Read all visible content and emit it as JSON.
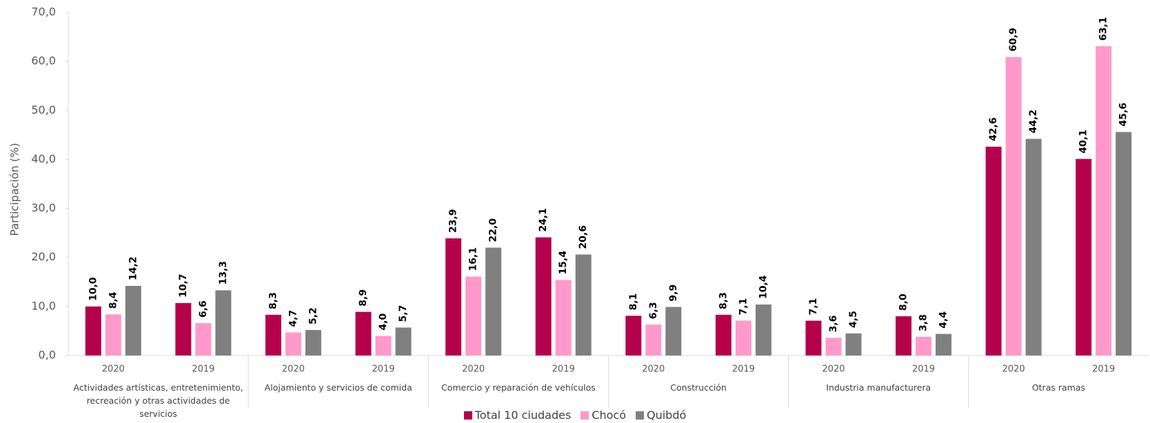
{
  "chart_data": {
    "type": "bar",
    "y_label": "Participación (%)",
    "categories": [
      "2020",
      "2019",
      "2020",
      "2019",
      "2020",
      "2019",
      "2020",
      "2019",
      "2020",
      "2019",
      "2020",
      "2019"
    ],
    "groups": [
      "Actividades artísticas, entretenimiento, recreación y otras actividades de servicios",
      "Alojamiento y servicios de comida",
      "Comercio y reparación de vehículos",
      "Construcción",
      "Industria manufacturera",
      "Otras ramas"
    ],
    "series": [
      {
        "name": "Total 10 ciudades",
        "color": "#b5004b",
        "values": [
          10.0,
          10.7,
          8.3,
          8.9,
          23.9,
          24.1,
          8.1,
          8.3,
          7.1,
          8.0,
          42.6,
          40.1
        ],
        "value_labels": [
          "10,0",
          "10,7",
          "8,3",
          "8,9",
          "23,9",
          "24,1",
          "8,1",
          "8,3",
          "7,1",
          "8,0",
          "42,6",
          "40,1"
        ]
      },
      {
        "name": "Chocó",
        "color": "#ff99cc",
        "values": [
          8.4,
          6.6,
          4.7,
          4.0,
          16.1,
          15.4,
          6.3,
          7.1,
          3.6,
          3.8,
          60.9,
          63.1
        ],
        "value_labels": [
          "8,4",
          "6,6",
          "4,7",
          "4,0",
          "16,1",
          "15,4",
          "6,3",
          "7,1",
          "3,6",
          "3,8",
          "60,9",
          "63,1"
        ]
      },
      {
        "name": "Quibdó",
        "color": "#808080",
        "values": [
          14.2,
          13.3,
          5.2,
          5.7,
          22.0,
          20.6,
          9.9,
          10.4,
          4.5,
          4.4,
          44.2,
          45.6
        ],
        "value_labels": [
          "14,2",
          "13,3",
          "5,2",
          "5,7",
          "22,0",
          "20,6",
          "9,9",
          "10,4",
          "4,5",
          "4,4",
          "44,2",
          "45,6"
        ]
      }
    ],
    "ylim": [
      0,
      70
    ],
    "yticks": [
      {
        "value": 0,
        "label": "0,0"
      },
      {
        "value": 10,
        "label": "10,0"
      },
      {
        "value": 20,
        "label": "20,0"
      },
      {
        "value": 30,
        "label": "30,0"
      },
      {
        "value": 40,
        "label": "40,0"
      },
      {
        "value": 50,
        "label": "50,0"
      },
      {
        "value": 60,
        "label": "60,0"
      },
      {
        "value": 70,
        "label": "70,0"
      }
    ],
    "grid": false,
    "legend": "bottom"
  }
}
